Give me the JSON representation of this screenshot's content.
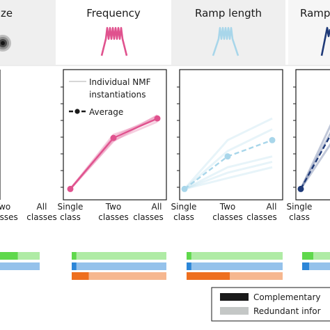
{
  "panels": [
    {
      "title": "ze"
    },
    {
      "title": "Frequency"
    },
    {
      "title": "Ramp length"
    },
    {
      "title": "Ramp"
    }
  ],
  "legend": {
    "individual": "Individual NMF instantiations",
    "individual_line1": "Individual NMF",
    "individual_line2": "instantiations",
    "average": "Average"
  },
  "tick_labels": {
    "p0_two_line1": "Two",
    "p0_two_line2": "classes",
    "p0_all_line1": "All",
    "p0_all_line2": "classes",
    "single_line1": "Single",
    "single_line2": "class",
    "two_line1": "Two",
    "two_line2": "classes",
    "all_line1": "All",
    "all_line2": "classes"
  },
  "info_legend": {
    "complementary": "Complementary",
    "redundant": "Redundant infor"
  },
  "colors": {
    "pink": "#e0528e",
    "light_blue": "#a8d6ea",
    "navy": "#1f3a78",
    "green": "#5fd84c",
    "blue": "#2c86d8",
    "orange": "#ee6f1f",
    "header_bg": "#efefef"
  },
  "chart_data": [
    {
      "type": "line",
      "panel": "Frequency",
      "categories": [
        "Single class",
        "Two classes",
        "All classes"
      ],
      "series": [
        {
          "name": "Average",
          "values": [
            0.1,
            0.57,
            0.75
          ],
          "color": "#e0528e"
        }
      ],
      "instantiations": [
        [
          0.1,
          0.55,
          0.72
        ],
        [
          0.1,
          0.58,
          0.77
        ],
        [
          0.1,
          0.6,
          0.74
        ],
        [
          0.1,
          0.54,
          0.78
        ]
      ],
      "ylim": [
        0,
        1.2
      ]
    },
    {
      "type": "line",
      "panel": "Ramp length",
      "categories": [
        "Single class",
        "Two classes",
        "All classes"
      ],
      "series": [
        {
          "name": "Average",
          "values": [
            0.1,
            0.4,
            0.55
          ],
          "color": "#a8d6ea",
          "dashed": true
        }
      ],
      "instantiations": [
        [
          0.1,
          0.25,
          0.35
        ],
        [
          0.1,
          0.3,
          0.4
        ],
        [
          0.1,
          0.55,
          0.75
        ],
        [
          0.1,
          0.45,
          0.65
        ],
        [
          0.1,
          0.2,
          0.3
        ]
      ],
      "ylim": [
        0,
        1.2
      ]
    },
    {
      "type": "line",
      "panel": "Ramp",
      "categories": [
        "Single class",
        "Two classes",
        "All classes"
      ],
      "series": [
        {
          "name": "Average",
          "values": [
            0.1,
            0.82,
            1.0
          ],
          "color": "#1f3a78",
          "dashed": true
        }
      ],
      "instantiations": [
        [
          0.1,
          0.7,
          0.95
        ],
        [
          0.1,
          0.95,
          1.05
        ],
        [
          0.1,
          0.85,
          1.0
        ]
      ],
      "ylim": [
        0,
        1.2
      ]
    }
  ],
  "info_bars": [
    {
      "panel": "ze",
      "rows": [
        {
          "color": "#5fd84c",
          "complementary": 0.45,
          "redundant": 0.55
        },
        {
          "color": "#2c86d8",
          "complementary": 0.0,
          "redundant": 1.0
        }
      ]
    },
    {
      "panel": "Frequency",
      "rows": [
        {
          "color": "#5fd84c",
          "complementary": 0.05,
          "redundant": 0.95
        },
        {
          "color": "#2c86d8",
          "complementary": 0.05,
          "redundant": 0.95
        },
        {
          "color": "#ee6f1f",
          "complementary": 0.18,
          "redundant": 0.82
        }
      ]
    },
    {
      "panel": "Ramp length",
      "rows": [
        {
          "color": "#5fd84c",
          "complementary": 0.05,
          "redundant": 0.95
        },
        {
          "color": "#2c86d8",
          "complementary": 0.05,
          "redundant": 0.95
        },
        {
          "color": "#ee6f1f",
          "complementary": 0.45,
          "redundant": 0.55
        }
      ]
    },
    {
      "panel": "Ramp",
      "rows": [
        {
          "color": "#5fd84c",
          "complementary": 0.4,
          "redundant": 0.6
        },
        {
          "color": "#2c86d8",
          "complementary": 0.25,
          "redundant": 0.75
        }
      ]
    }
  ]
}
